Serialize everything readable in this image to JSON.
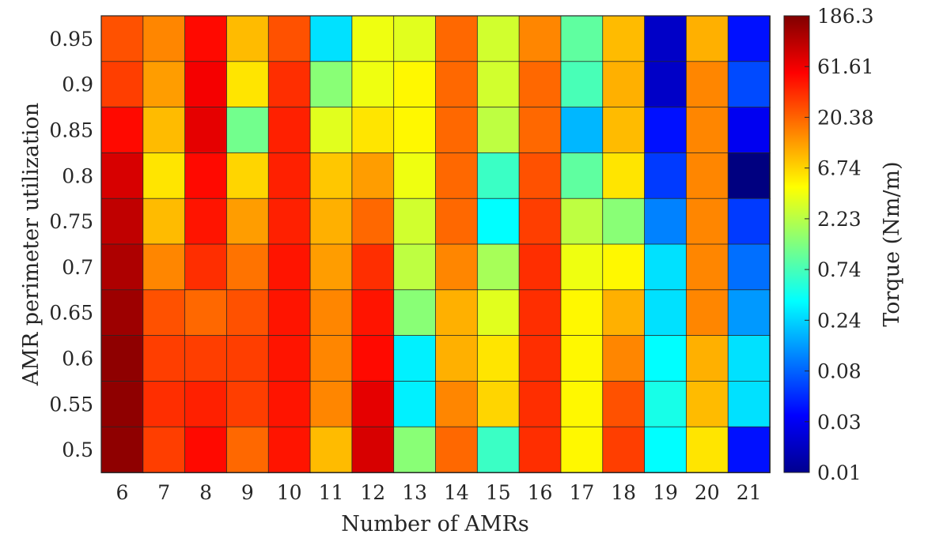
{
  "chart_data": {
    "type": "heatmap",
    "xlabel": "Number of AMRs",
    "ylabel": "AMR perimeter utilization",
    "colorbar_label": "Torque (Nm/m)",
    "colormap": "jet",
    "color_scale": "log",
    "clim": [
      0.01,
      186.3
    ],
    "colorbar_ticks": [
      "186.3",
      "61.61",
      "20.38",
      "6.74",
      "2.23",
      "0.74",
      "0.24",
      "0.08",
      "0.03",
      "0.01"
    ],
    "x_categories": [
      "6",
      "7",
      "8",
      "9",
      "10",
      "11",
      "12",
      "13",
      "14",
      "15",
      "16",
      "17",
      "18",
      "19",
      "20",
      "21"
    ],
    "y_categories": [
      "0.95",
      "0.9",
      "0.85",
      "0.8",
      "0.75",
      "0.7",
      "0.65",
      "0.6",
      "0.55",
      "0.5"
    ],
    "values": [
      [
        25,
        15,
        50,
        9,
        25,
        0.3,
        4,
        3.5,
        20,
        3,
        15,
        1,
        9,
        0.02,
        10,
        0.04
      ],
      [
        30,
        12,
        60,
        6,
        35,
        1.5,
        4,
        5,
        20,
        3,
        20,
        0.8,
        10,
        0.02,
        15,
        0.07
      ],
      [
        50,
        9,
        70,
        1.2,
        40,
        3.5,
        6,
        5,
        20,
        2.5,
        20,
        0.2,
        9,
        0.04,
        15,
        0.03
      ],
      [
        80,
        6,
        50,
        7,
        40,
        8,
        12,
        4,
        20,
        0.7,
        25,
        1,
        6,
        0.06,
        15,
        0.01
      ],
      [
        100,
        9,
        45,
        12,
        40,
        10,
        20,
        3,
        20,
        0.4,
        30,
        2.5,
        1.5,
        0.12,
        15,
        0.06
      ],
      [
        120,
        15,
        35,
        18,
        45,
        12,
        35,
        2.5,
        15,
        2,
        35,
        4,
        5,
        0.3,
        15,
        0.1
      ],
      [
        140,
        25,
        20,
        25,
        45,
        15,
        45,
        1.5,
        10,
        3.5,
        35,
        5,
        10,
        0.3,
        15,
        0.15
      ],
      [
        160,
        30,
        30,
        30,
        45,
        15,
        50,
        0.35,
        10,
        6,
        35,
        5,
        15,
        0.4,
        10,
        0.3
      ],
      [
        160,
        35,
        40,
        30,
        45,
        15,
        70,
        0.35,
        15,
        7,
        35,
        5,
        25,
        0.5,
        9,
        0.3
      ],
      [
        160,
        30,
        50,
        20,
        45,
        9,
        80,
        1.5,
        20,
        0.7,
        35,
        5,
        30,
        0.4,
        6,
        0.04
      ]
    ]
  }
}
